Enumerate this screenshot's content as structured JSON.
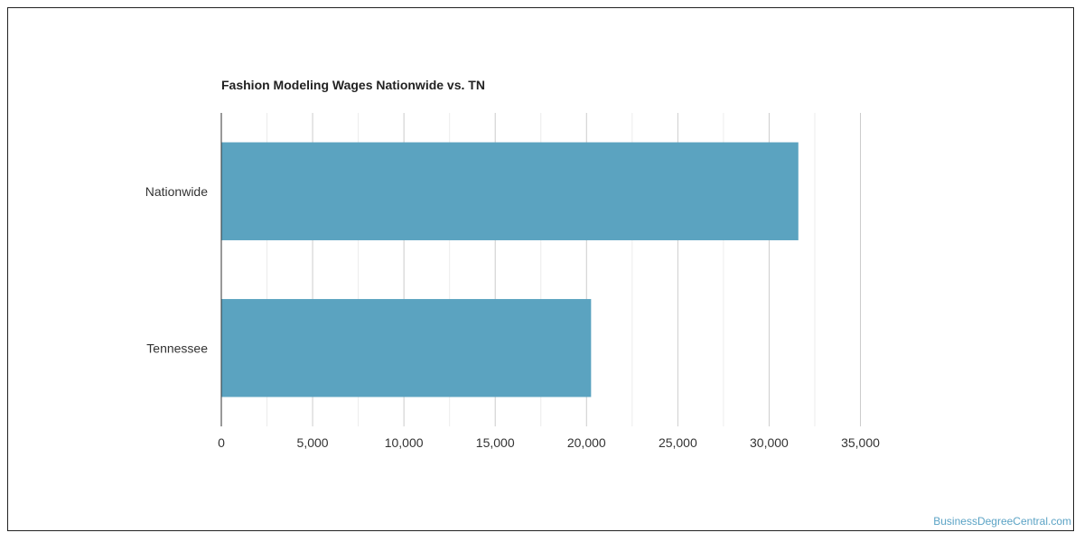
{
  "chart_data": {
    "type": "bar",
    "orientation": "horizontal",
    "title": "Fashion Modeling Wages Nationwide vs. TN",
    "categories": [
      "Nationwide",
      "Tennessee"
    ],
    "values": [
      31600,
      20250
    ],
    "xlim": [
      0,
      35000
    ],
    "xticks": [
      0,
      5000,
      10000,
      15000,
      20000,
      25000,
      30000,
      35000
    ],
    "xtick_labels": [
      "0",
      "5,000",
      "10,000",
      "15,000",
      "20,000",
      "25,000",
      "30,000",
      "35,000"
    ],
    "bar_color": "#5ba3c0",
    "grid": true
  },
  "watermark": "BusinessDegreeCentral.com"
}
